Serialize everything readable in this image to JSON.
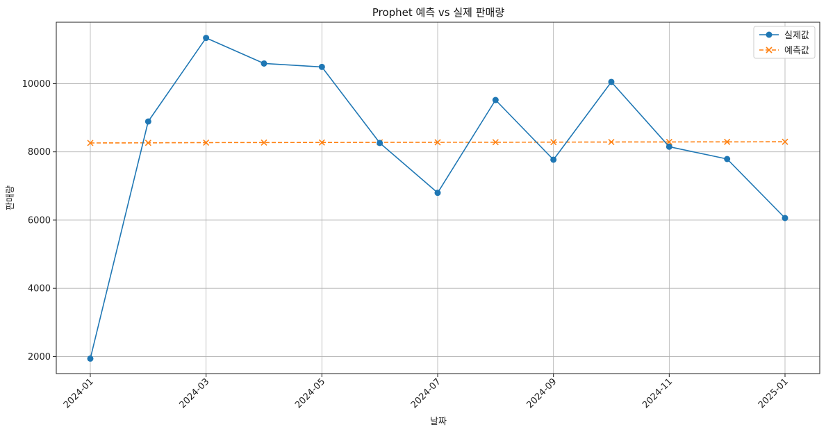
{
  "chart_data": {
    "type": "line",
    "title": "Prophet 예측 vs 실제 판매량",
    "xlabel": "날짜",
    "ylabel": "판매량",
    "x": [
      "2024-01",
      "2024-02",
      "2024-03",
      "2024-04",
      "2024-05",
      "2024-06",
      "2024-07",
      "2024-08",
      "2024-09",
      "2024-10",
      "2024-11",
      "2024-12",
      "2025-01"
    ],
    "x_ticks": [
      "2024-01",
      "2024-03",
      "2024-05",
      "2024-07",
      "2024-09",
      "2024-11",
      "2025-01"
    ],
    "y_ticks": [
      2000,
      4000,
      6000,
      8000,
      10000
    ],
    "ylim": [
      1500,
      11800
    ],
    "grid": true,
    "legend_position": "top-right",
    "series": [
      {
        "name": "실제값",
        "color": "#1f77b4",
        "line_style": "solid",
        "marker": "circle",
        "values": [
          1940,
          8890,
          11340,
          10590,
          10490,
          8260,
          6800,
          9520,
          7770,
          10050,
          8150,
          7790,
          6060
        ]
      },
      {
        "name": "예측값",
        "color": "#ff7f0e",
        "line_style": "dashed",
        "marker": "x",
        "values": [
          8260,
          8265,
          8270,
          8272,
          8275,
          8278,
          8280,
          8283,
          8285,
          8288,
          8290,
          8293,
          8295
        ]
      }
    ]
  }
}
